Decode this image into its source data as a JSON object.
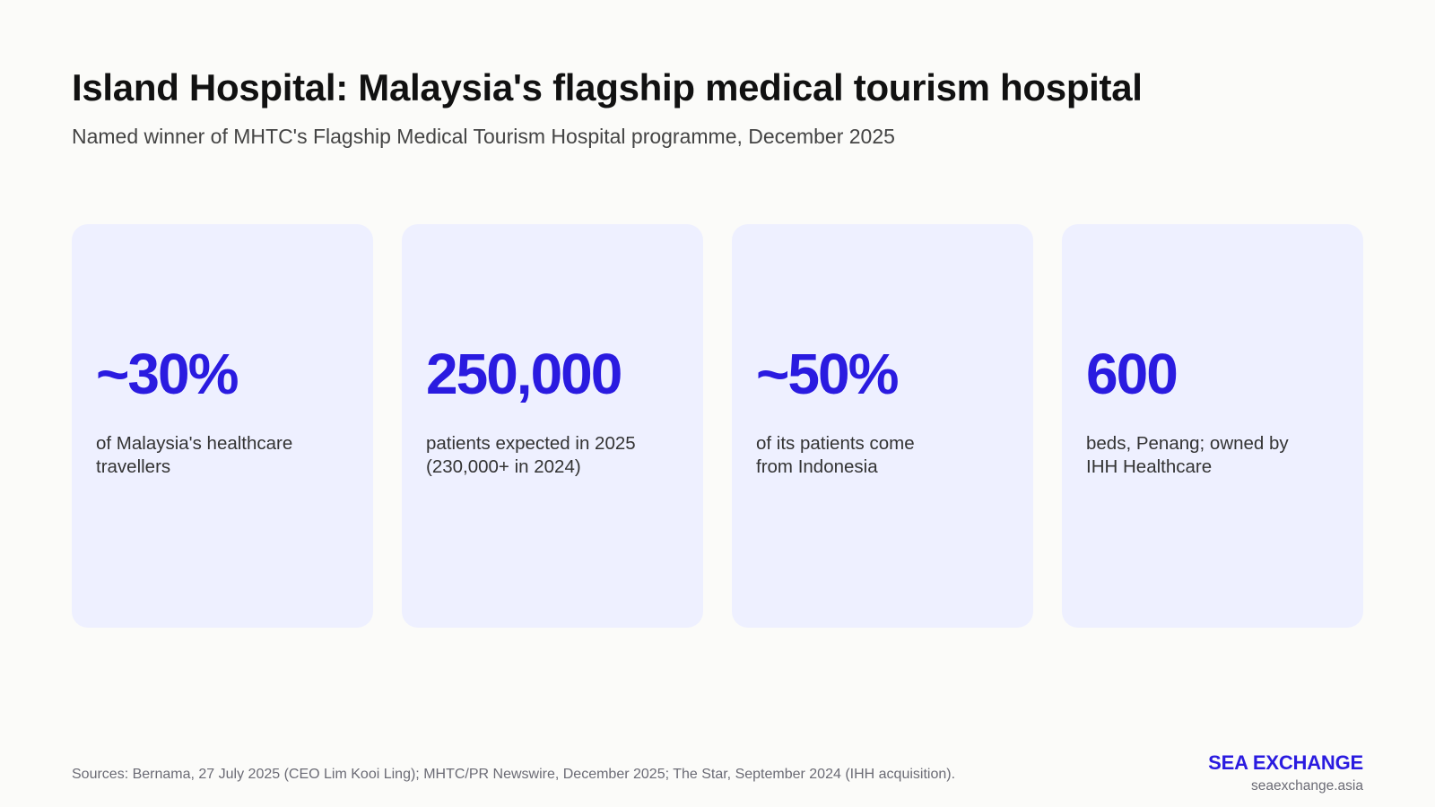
{
  "header": {
    "title": "Island Hospital: Malaysia's flagship medical tourism hospital",
    "subtitle": "Named winner of MHTC's Flagship Medical Tourism Hospital programme, December 2025"
  },
  "stats": [
    {
      "value": "~30%",
      "label_line1": "of Malaysia's healthcare",
      "label_line2": "travellers"
    },
    {
      "value": "250,000",
      "label_line1": "patients expected in 2025",
      "label_line2": "(230,000+ in 2024)"
    },
    {
      "value": "~50%",
      "label_line1": "of its patients come",
      "label_line2": "from Indonesia"
    },
    {
      "value": "600",
      "label_line1": "beds, Penang; owned by",
      "label_line2": "IHH Healthcare"
    }
  ],
  "footer": {
    "sources": "Sources: Bernama, 27 July 2025 (CEO Lim Kooi Ling); MHTC/PR Newswire, December 2025; The Star, September 2024 (IHH acquisition).",
    "brand_name": "SEA EXCHANGE",
    "brand_url": "seaexchange.asia"
  },
  "colors": {
    "accent": "#2a1be0",
    "card_background": "#eef0ff",
    "page_background": "#fbfbf9"
  }
}
